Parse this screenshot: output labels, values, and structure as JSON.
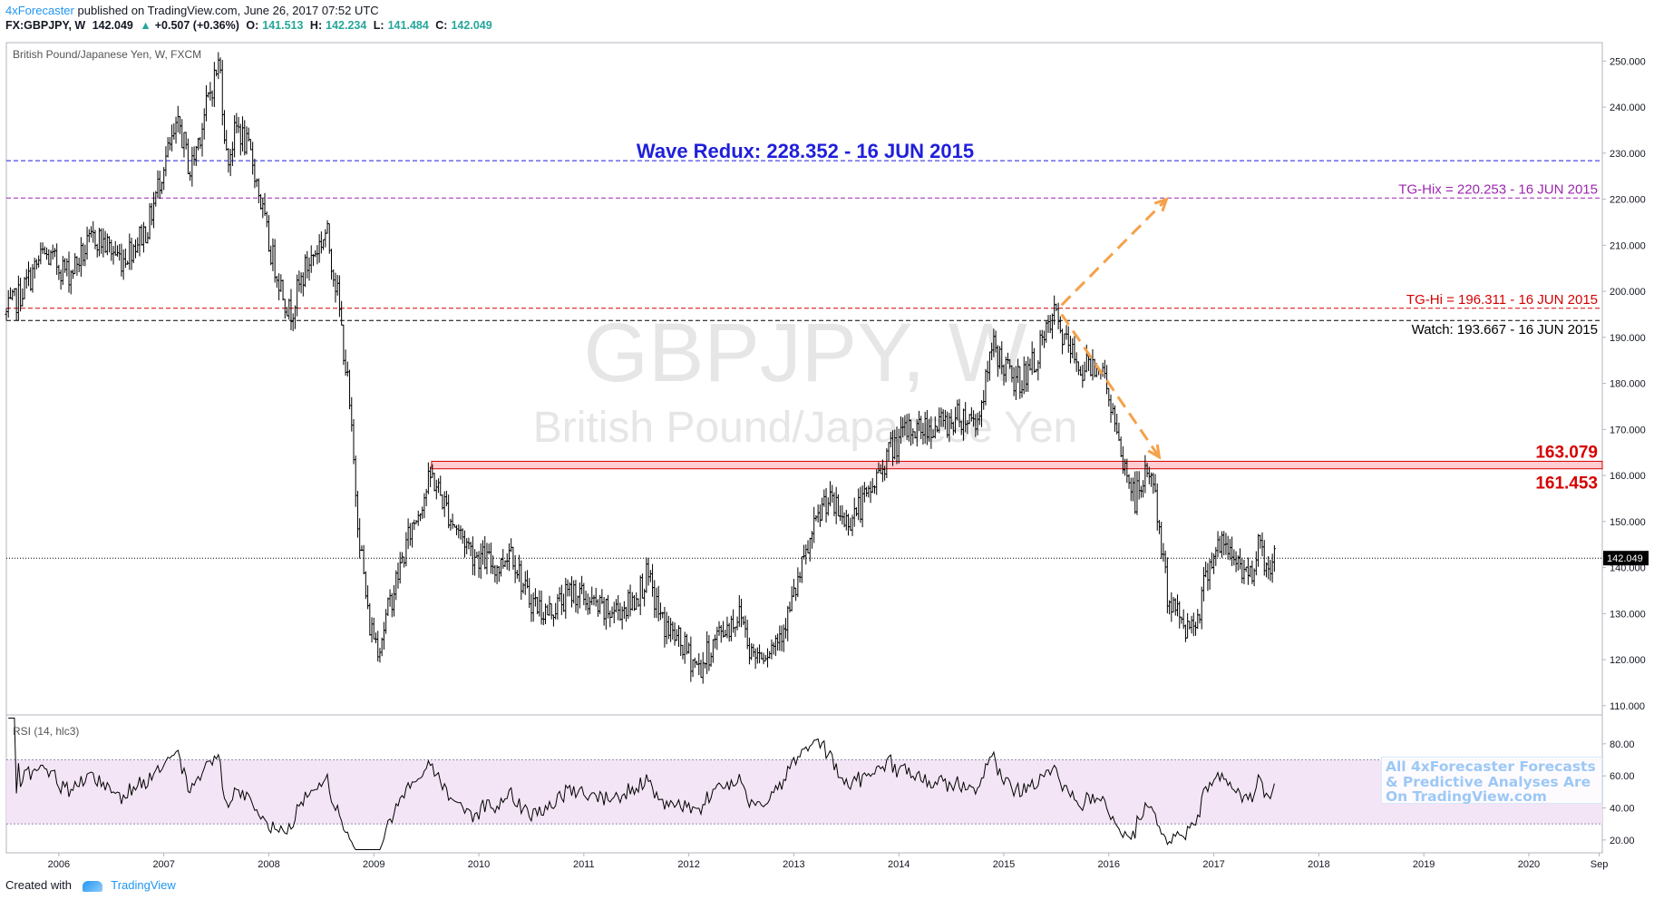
{
  "header": {
    "author": "4xForecaster",
    "published_text": "published on TradingView.com, June 26, 2017 07:52 UTC",
    "symbol": "FX:GBPJPY, W",
    "last": "142.049",
    "change_arrow": "▲",
    "change": "+0.507 (+0.36%)",
    "open_label": "O:",
    "open": "141.513",
    "high_label": "H:",
    "high": "142.234",
    "low_label": "L:",
    "low": "141.484",
    "close_label": "C:",
    "close": "142.049"
  },
  "footer": {
    "created_with": "Created with",
    "brand": "TradingView",
    "brand_icon": "tradingview-logo-icon"
  },
  "promo": {
    "line1": "All 4xForecaster Forecasts",
    "line2": "& Predictive Analyses Are",
    "line3": "On TradingView.com"
  },
  "colors": {
    "wave": "#1f1fdb",
    "tg_hix": "#9c27b0",
    "tg_hi": "#d50000",
    "watch": "#000000",
    "zone_fill": "#ffcdd2",
    "arrow": "#f5a14a",
    "rsi_band": "#f3e5f5",
    "rsi_line": "#000000"
  },
  "chart_data": [
    {
      "type": "candlestick",
      "title": "British Pound/Japanese Yen, W, FXCM",
      "watermark_symbol": "GBPJPY, W",
      "watermark_name": "British Pound/Japanese Yen",
      "x_ticks": [
        "2006",
        "2007",
        "2008",
        "2009",
        "2010",
        "2011",
        "2012",
        "2013",
        "2014",
        "2015",
        "2016",
        "2017",
        "2018",
        "2019",
        "2020",
        "Sep"
      ],
      "x_range": [
        2005.5,
        2020.7
      ],
      "y_ticks": [
        "250.000",
        "240.000",
        "230.000",
        "220.000",
        "210.000",
        "200.000",
        "190.000",
        "180.000",
        "170.000",
        "160.000",
        "150.000",
        "140.000",
        "130.000",
        "120.000",
        "110.000"
      ],
      "y_range": [
        108,
        254
      ],
      "last_price": 142.049,
      "last_price_label": "142.049",
      "price_path": [
        [
          2005.5,
          195
        ],
        [
          2005.65,
          200
        ],
        [
          2005.85,
          208
        ],
        [
          2006.1,
          204
        ],
        [
          2006.35,
          212
        ],
        [
          2006.6,
          207
        ],
        [
          2006.85,
          214
        ],
        [
          2007.0,
          228
        ],
        [
          2007.15,
          236
        ],
        [
          2007.25,
          226
        ],
        [
          2007.45,
          244
        ],
        [
          2007.53,
          250
        ],
        [
          2007.6,
          228
        ],
        [
          2007.7,
          236
        ],
        [
          2007.85,
          228
        ],
        [
          2008.0,
          210
        ],
        [
          2008.2,
          195
        ],
        [
          2008.35,
          205
        ],
        [
          2008.55,
          213
        ],
        [
          2008.65,
          200
        ],
        [
          2008.75,
          180
        ],
        [
          2008.85,
          150
        ],
        [
          2008.95,
          128
        ],
        [
          2009.05,
          123
        ],
        [
          2009.15,
          132
        ],
        [
          2009.35,
          148
        ],
        [
          2009.55,
          160
        ],
        [
          2009.75,
          150
        ],
        [
          2009.95,
          143
        ],
        [
          2010.2,
          140
        ],
        [
          2010.3,
          145
        ],
        [
          2010.45,
          134
        ],
        [
          2010.65,
          130
        ],
        [
          2010.9,
          135
        ],
        [
          2011.2,
          130
        ],
        [
          2011.45,
          132
        ],
        [
          2011.6,
          138
        ],
        [
          2011.75,
          128
        ],
        [
          2011.9,
          124
        ],
        [
          2012.1,
          118
        ],
        [
          2012.3,
          126
        ],
        [
          2012.5,
          130
        ],
        [
          2012.6,
          121
        ],
        [
          2012.8,
          123
        ],
        [
          2012.95,
          130
        ],
        [
          2013.15,
          145
        ],
        [
          2013.3,
          155
        ],
        [
          2013.5,
          150
        ],
        [
          2013.7,
          155
        ],
        [
          2013.9,
          165
        ],
        [
          2014.1,
          170
        ],
        [
          2014.4,
          171
        ],
        [
          2014.6,
          173
        ],
        [
          2014.75,
          172
        ],
        [
          2014.9,
          188
        ],
        [
          2015.1,
          180
        ],
        [
          2015.25,
          183
        ],
        [
          2015.4,
          190
        ],
        [
          2015.48,
          195
        ],
        [
          2015.6,
          188
        ],
        [
          2015.75,
          183
        ],
        [
          2015.9,
          185
        ],
        [
          2016.0,
          178
        ],
        [
          2016.1,
          165
        ],
        [
          2016.25,
          155
        ],
        [
          2016.4,
          162
        ],
        [
          2016.48,
          148
        ],
        [
          2016.55,
          135
        ],
        [
          2016.65,
          130
        ],
        [
          2016.75,
          127
        ],
        [
          2016.85,
          130
        ],
        [
          2016.95,
          141
        ],
        [
          2017.05,
          145
        ],
        [
          2017.2,
          142
        ],
        [
          2017.35,
          138
        ],
        [
          2017.42,
          146
        ],
        [
          2017.5,
          140
        ],
        [
          2017.58,
          142.049
        ]
      ],
      "lines": [
        {
          "name": "wave",
          "value": 228.352,
          "label": "Wave Redux: 228.352 - 16 JUN 2015"
        },
        {
          "name": "tg-hix",
          "value": 220.253,
          "label": "TG-Hix = 220.253 - 16 JUN 2015"
        },
        {
          "name": "tg-hi",
          "value": 196.311,
          "label": "TG-Hi = 196.311 - 16 JUN 2015"
        },
        {
          "name": "watch",
          "value": 193.667,
          "label": "Watch: 193.667 - 16 JUN 2015"
        }
      ],
      "zone": {
        "high": 163.079,
        "low": 161.453,
        "high_label": "163.079",
        "low_label": "161.453"
      },
      "arrows": [
        {
          "from": [
            2015.55,
            197
          ],
          "to": [
            2016.55,
            220
          ]
        },
        {
          "from": [
            2015.55,
            195
          ],
          "to": [
            2016.48,
            164
          ]
        }
      ],
      "grid": false,
      "legend": "none"
    },
    {
      "type": "line",
      "title": "RSI (14, hlc3)",
      "y_ticks": [
        "80.00",
        "60.00",
        "40.00",
        "20.00"
      ],
      "y_range": [
        12,
        98
      ],
      "bands": [
        70,
        30
      ]
    }
  ]
}
